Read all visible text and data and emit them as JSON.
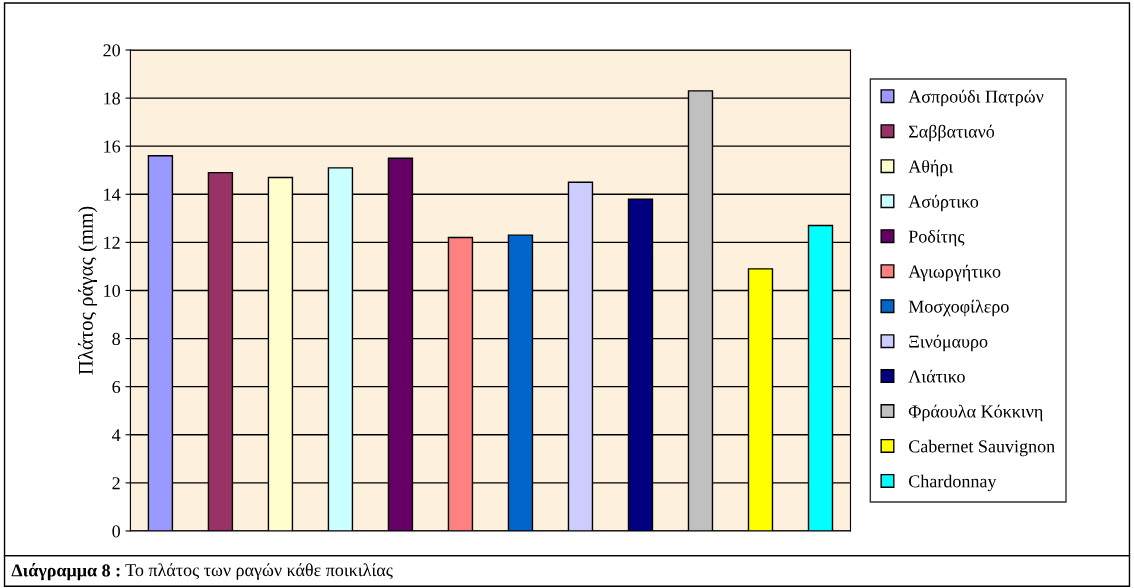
{
  "chart_data": {
    "type": "bar",
    "ylabel": "Πλάτος ράγας (mm)",
    "categories": [
      null
    ],
    "series": [
      {
        "name": "Ασπρούδι Πατρών",
        "color": "#9999ff",
        "values": [
          15.6
        ]
      },
      {
        "name": "Σαββατιανό",
        "color": "#993366",
        "values": [
          14.9
        ]
      },
      {
        "name": "Αθήρι",
        "color": "#ffffcc",
        "values": [
          14.7
        ]
      },
      {
        "name": "Ασύρτικο",
        "color": "#ccffff",
        "values": [
          15.1
        ]
      },
      {
        "name": "Ροδίτης",
        "color": "#660066",
        "values": [
          15.5
        ]
      },
      {
        "name": "Αγιωργήτικο",
        "color": "#ff8080",
        "values": [
          12.2
        ]
      },
      {
        "name": "Μοσχοφίλερο",
        "color": "#0066cc",
        "values": [
          12.3
        ]
      },
      {
        "name": "Ξινόμαυρο",
        "color": "#ccccff",
        "values": [
          14.5
        ]
      },
      {
        "name": "Λιάτικο",
        "color": "#000080",
        "values": [
          13.8
        ]
      },
      {
        "name": "Φράουλα Κόκκινη",
        "color": "#c0c0c0",
        "values": [
          18.3
        ]
      },
      {
        "name": "Cabernet Sauvignon",
        "color": "#ffff00",
        "values": [
          10.9
        ]
      },
      {
        "name": "Chardonnay",
        "color": "#00ffff",
        "values": [
          12.7
        ]
      }
    ],
    "ylim": [
      0,
      20
    ],
    "yticks": [
      0,
      2,
      4,
      6,
      8,
      10,
      12,
      14,
      16,
      18,
      20
    ],
    "grid": "y",
    "legend": "right",
    "annotations": [
      "Διάγραμμα 8 :",
      "Το πλάτος των ραγών κάθε ποικιλίας"
    ]
  }
}
